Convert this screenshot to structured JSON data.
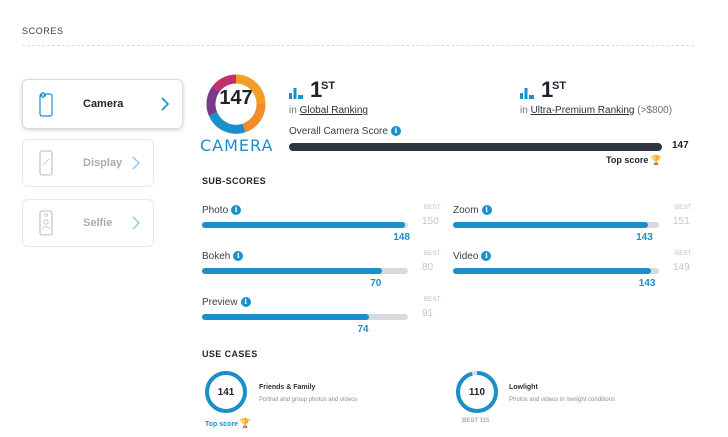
{
  "section": {
    "title": "SCORES"
  },
  "sidebar": {
    "items": [
      {
        "label": "Camera",
        "active": true,
        "icon": "camera-phone-icon"
      },
      {
        "label": "Display",
        "active": false,
        "icon": "display-phone-icon"
      },
      {
        "label": "Selfie",
        "active": false,
        "icon": "selfie-phone-icon"
      }
    ]
  },
  "badge": {
    "score": "147",
    "label": "CAMERA"
  },
  "rankings": [
    {
      "rank": "1",
      "suffix": "ST",
      "prefix": "in",
      "link": "Global Ranking",
      "extra": ""
    },
    {
      "rank": "1",
      "suffix": "ST",
      "prefix": "in",
      "link": "Ultra-Premium Ranking",
      "extra": "(>$800)"
    }
  ],
  "overall": {
    "label": "Overall Camera Score",
    "info": "i",
    "value": "147",
    "fraction": 1.0,
    "top_label": "Top score"
  },
  "subscores": {
    "heading": "SUB-SCORES",
    "best_label": "BEST",
    "items": [
      {
        "label": "Photo",
        "value": "148",
        "best": "150",
        "fraction": 0.987
      },
      {
        "label": "Zoom",
        "value": "143",
        "best": "151",
        "fraction": 0.947
      },
      {
        "label": "Bokeh",
        "value": "70",
        "best": "80",
        "fraction": 0.875
      },
      {
        "label": "Video",
        "value": "143",
        "best": "149",
        "fraction": 0.96
      },
      {
        "label": "Preview",
        "value": "74",
        "best": "91",
        "fraction": 0.813
      }
    ]
  },
  "use_cases": {
    "heading": "USE CASES",
    "items": [
      {
        "value": "141",
        "title": "Friends & Family",
        "desc": "Portrait and group photos and videos",
        "footer": "Top score",
        "fraction": 1.0
      },
      {
        "value": "110",
        "title": "Lowlight",
        "desc": "Photos and videos in lowlight conditions",
        "footer": "BEST 115",
        "fraction": 0.957
      }
    ]
  },
  "colors": {
    "accent": "#1b8fc9",
    "dark": "#2f3540",
    "track": "#d7dbe0",
    "trophy": "#e5a72a"
  }
}
